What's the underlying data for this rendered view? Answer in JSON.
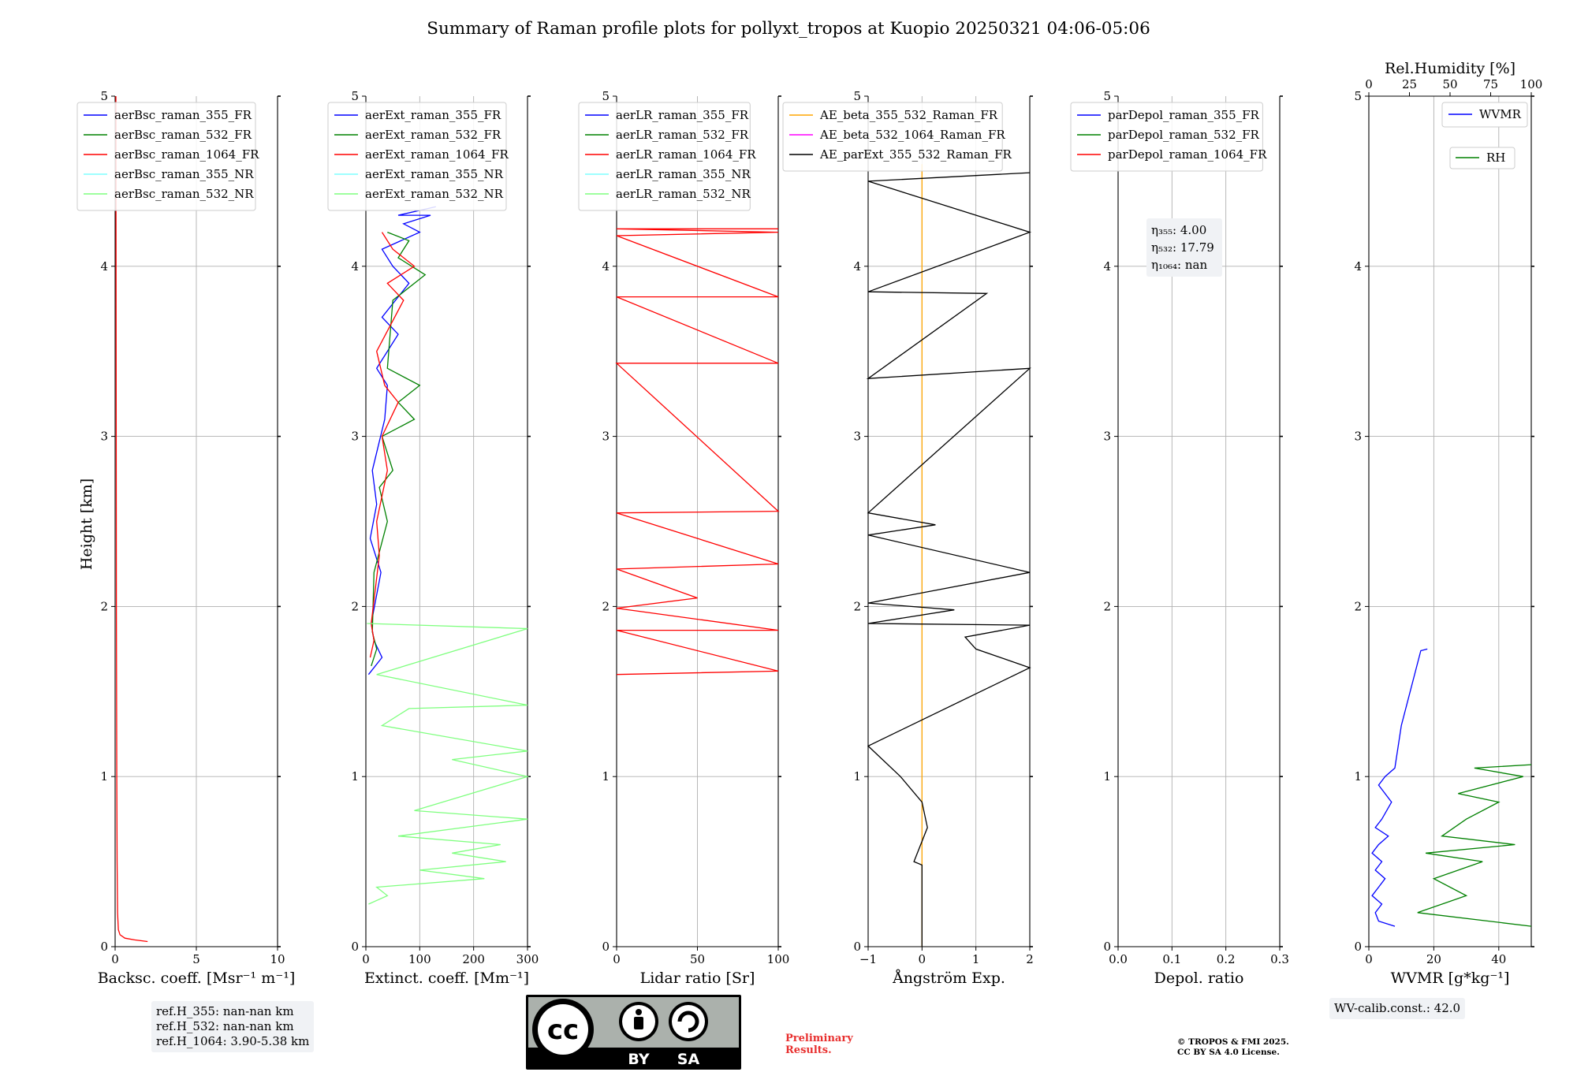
{
  "title": "Summary of Raman profile plots for pollyxt_tropos at Kuopio 20250321 04:06-05:06",
  "ylabel": "Height [km]",
  "colors": {
    "blue": "#0000ff",
    "green": "#008000",
    "red": "#ff0000",
    "cyan": "#7fffff",
    "lightgreen": "#7fff7f",
    "orange": "#ffa500",
    "magenta": "#ff00ff",
    "black": "#000000"
  },
  "chart_data": [
    {
      "type": "line",
      "panel": "backscatter",
      "xlabel": "Backsc. coeff. [Msr⁻¹ m⁻¹]",
      "xlim": [
        0,
        10
      ],
      "ylim": [
        0,
        5
      ],
      "xticks": [
        "0",
        "5",
        "10"
      ],
      "yticks": [
        "0",
        "1",
        "2",
        "3",
        "4",
        "5"
      ],
      "grid": true,
      "legend_position": "upper-left",
      "series": [
        {
          "name": "aerBsc_raman_355_FR",
          "color": "blue",
          "x": [],
          "y": []
        },
        {
          "name": "aerBsc_raman_532_FR",
          "color": "green",
          "x": [],
          "y": []
        },
        {
          "name": "aerBsc_raman_1064_FR",
          "color": "red",
          "x": [
            2.0,
            1.2,
            0.6,
            0.3,
            0.2,
            0.15,
            0.12,
            0.1,
            0.08,
            0.07,
            0.06,
            0.05
          ],
          "y": [
            0.03,
            0.04,
            0.05,
            0.07,
            0.1,
            0.2,
            0.5,
            1.0,
            2.0,
            3.0,
            4.0,
            5.0
          ]
        },
        {
          "name": "aerBsc_raman_355_NR",
          "color": "cyan",
          "x": [],
          "y": []
        },
        {
          "name": "aerBsc_raman_532_NR",
          "color": "lightgreen",
          "x": [],
          "y": []
        }
      ]
    },
    {
      "type": "line",
      "panel": "extinction",
      "xlabel": "Extinct. coeff. [Mm⁻¹]",
      "xlim": [
        0,
        300
      ],
      "ylim": [
        0,
        5
      ],
      "xticks": [
        "0",
        "100",
        "200",
        "300"
      ],
      "yticks": [
        "0",
        "1",
        "2",
        "3",
        "4",
        "5"
      ],
      "grid": true,
      "legend_position": "upper-left",
      "series": [
        {
          "name": "aerExt_raman_355_FR",
          "color": "blue",
          "x": [
            5,
            30,
            15,
            10,
            28,
            8,
            20,
            12,
            35,
            40,
            20,
            60,
            30,
            80,
            50,
            30,
            100,
            70,
            120,
            60,
            130
          ],
          "y": [
            1.6,
            1.7,
            1.8,
            1.9,
            2.2,
            2.4,
            2.6,
            2.8,
            3.1,
            3.3,
            3.4,
            3.6,
            3.7,
            3.9,
            4.0,
            4.1,
            4.2,
            4.25,
            4.3,
            4.3,
            4.35
          ]
        },
        {
          "name": "aerExt_raman_532_FR",
          "color": "green",
          "x": [
            10,
            20,
            12,
            15,
            40,
            25,
            50,
            30,
            90,
            60,
            100,
            40,
            50,
            110,
            60,
            80,
            40
          ],
          "y": [
            1.65,
            1.75,
            1.85,
            2.2,
            2.5,
            2.7,
            2.8,
            3.0,
            3.1,
            3.2,
            3.3,
            3.4,
            3.8,
            3.95,
            4.05,
            4.15,
            4.2
          ]
        },
        {
          "name": "aerExt_raman_1064_FR",
          "color": "red",
          "x": [
            8,
            15,
            10,
            25,
            20,
            40,
            30,
            60,
            35,
            20,
            70,
            40,
            90,
            50,
            30
          ],
          "y": [
            1.7,
            1.8,
            1.9,
            2.3,
            2.5,
            2.8,
            3.0,
            3.2,
            3.3,
            3.5,
            3.8,
            3.9,
            4.0,
            4.1,
            4.2
          ]
        },
        {
          "name": "aerExt_raman_355_NR",
          "color": "cyan",
          "x": [],
          "y": []
        },
        {
          "name": "aerExt_raman_532_NR",
          "color": "lightgreen",
          "x": [
            5,
            40,
            20,
            220,
            100,
            260,
            160,
            250,
            60,
            300,
            90,
            300,
            160,
            300,
            30,
            80,
            300,
            20,
            300,
            2
          ],
          "y": [
            0.25,
            0.3,
            0.35,
            0.4,
            0.45,
            0.5,
            0.55,
            0.6,
            0.65,
            0.75,
            0.8,
            1.0,
            1.1,
            1.15,
            1.3,
            1.4,
            1.42,
            1.6,
            1.87,
            1.9
          ]
        }
      ]
    },
    {
      "type": "line",
      "panel": "lidar-ratio",
      "xlabel": "Lidar ratio [Sr]",
      "xlim": [
        0,
        120
      ],
      "ylim": [
        0,
        5
      ],
      "xticks": [
        "0",
        "50",
        "100"
      ],
      "yticks": [
        "0",
        "1",
        "2",
        "3",
        "4",
        "5"
      ],
      "grid": true,
      "legend_position": "upper-left",
      "series": [
        {
          "name": "aerLR_raman_355_FR",
          "color": "blue",
          "x": [],
          "y": []
        },
        {
          "name": "aerLR_raman_532_FR",
          "color": "green",
          "x": [],
          "y": []
        },
        {
          "name": "aerLR_raman_1064_FR",
          "color": "red",
          "x": [
            0,
            120,
            0,
            120,
            0,
            60,
            0,
            120,
            0,
            120,
            0,
            120,
            0,
            120,
            0,
            120,
            0,
            120
          ],
          "y": [
            1.6,
            1.62,
            1.86,
            1.86,
            1.99,
            2.05,
            2.22,
            2.25,
            2.55,
            2.56,
            3.43,
            3.43,
            3.82,
            3.82,
            4.18,
            4.2,
            4.22,
            4.22
          ]
        },
        {
          "name": "aerLR_raman_355_NR",
          "color": "cyan",
          "x": [],
          "y": []
        },
        {
          "name": "aerLR_raman_532_NR",
          "color": "lightgreen",
          "x": [],
          "y": []
        }
      ]
    },
    {
      "type": "line",
      "panel": "angstrom",
      "xlabel": "Ångström Exp.",
      "xlim": [
        -1,
        2
      ],
      "ylim": [
        0,
        5
      ],
      "xticks": [
        "−1",
        "0",
        "1",
        "2"
      ],
      "yticks": [
        "0",
        "1",
        "2",
        "3",
        "4",
        "5"
      ],
      "grid": true,
      "legend_position": "upper-left",
      "series": [
        {
          "name": "AE_beta_355_532_Raman_FR",
          "color": "orange",
          "x": [
            0,
            0
          ],
          "y": [
            0,
            4.6
          ]
        },
        {
          "name": "AE_beta_532_1064_Raman_FR",
          "color": "magenta",
          "x": [],
          "y": []
        },
        {
          "name": "AE_parExt_355_532_Raman_FR",
          "color": "black",
          "x": [
            0,
            0,
            -0.15,
            0.1,
            0.0,
            -0.4,
            -1.0,
            2.0,
            1.0,
            0.8,
            2.0,
            -1.0,
            0.6,
            -1.0,
            2.0,
            -1.0,
            0.25,
            -1.0,
            2.0,
            -1.0,
            1.2,
            -1.0,
            2.0,
            -1.0,
            2.0
          ],
          "y": [
            0,
            0.48,
            0.5,
            0.7,
            0.85,
            1.0,
            1.18,
            1.64,
            1.75,
            1.82,
            1.89,
            1.9,
            1.98,
            2.02,
            2.2,
            2.42,
            2.48,
            2.55,
            3.4,
            3.34,
            3.84,
            3.85,
            4.2,
            4.5,
            4.55
          ]
        }
      ]
    },
    {
      "type": "line",
      "panel": "depolarization",
      "xlabel": "Depol. ratio",
      "xlim": [
        0,
        0.3
      ],
      "ylim": [
        0,
        5
      ],
      "xticks": [
        "0.0",
        "0.1",
        "0.2",
        "0.3"
      ],
      "yticks": [
        "0",
        "1",
        "2",
        "3",
        "4",
        "5"
      ],
      "grid": true,
      "legend_position": "upper-left",
      "annotation": [
        "η₃₅₅: 4.00",
        "η₅₃₂: 17.79",
        "η₁₀₆₄: nan"
      ],
      "series": [
        {
          "name": "parDepol_raman_355_FR",
          "color": "blue",
          "x": [],
          "y": []
        },
        {
          "name": "parDepol_raman_532_FR",
          "color": "green",
          "x": [],
          "y": []
        },
        {
          "name": "parDepol_raman_1064_FR",
          "color": "red",
          "x": [],
          "y": []
        }
      ]
    },
    {
      "type": "line",
      "panel": "wvmr-rh",
      "xlabel": "WVMR [g*kg⁻¹]",
      "x2label": "Rel.Humidity [%]",
      "xlim": [
        0,
        50
      ],
      "x2lim": [
        0,
        100
      ],
      "ylim": [
        0,
        5
      ],
      "xticks": [
        "0",
        "20",
        "40"
      ],
      "x2ticks": [
        "0",
        "25",
        "50",
        "75",
        "100"
      ],
      "yticks": [
        "0",
        "1",
        "2",
        "3",
        "4",
        "5"
      ],
      "grid": true,
      "series": [
        {
          "name": "WVMR",
          "color": "blue",
          "axis": "bottom",
          "x": [
            8,
            3,
            2,
            4,
            1,
            3,
            5,
            2,
            4,
            1,
            3,
            6,
            2,
            4,
            7,
            3,
            5,
            8,
            10,
            16,
            18
          ],
          "y": [
            0.12,
            0.15,
            0.2,
            0.25,
            0.3,
            0.35,
            0.4,
            0.45,
            0.5,
            0.55,
            0.6,
            0.65,
            0.7,
            0.75,
            0.85,
            0.95,
            1.0,
            1.05,
            1.3,
            1.74,
            1.75
          ]
        },
        {
          "name": "RH",
          "color": "green",
          "axis": "top",
          "x": [
            100,
            30,
            60,
            40,
            70,
            35,
            90,
            45,
            60,
            80,
            55,
            95,
            65,
            100
          ],
          "y": [
            0.12,
            0.2,
            0.3,
            0.4,
            0.5,
            0.55,
            0.6,
            0.65,
            0.75,
            0.85,
            0.9,
            1.0,
            1.05,
            1.07
          ]
        }
      ]
    }
  ],
  "ref_box": [
    "ref.H_355: nan-nan km",
    "ref.H_532: nan-nan km",
    "ref.H_1064: 3.90-5.38 km"
  ],
  "wv_box": "WV-calib.const.: 42.0",
  "license_logo": {
    "cc": "cc",
    "by": "BY",
    "sa": "SA"
  },
  "preliminary": [
    "Preliminary",
    "Results."
  ],
  "credit": [
    "© TROPOS & FMI 2025.",
    "CC BY SA 4.0 License."
  ]
}
